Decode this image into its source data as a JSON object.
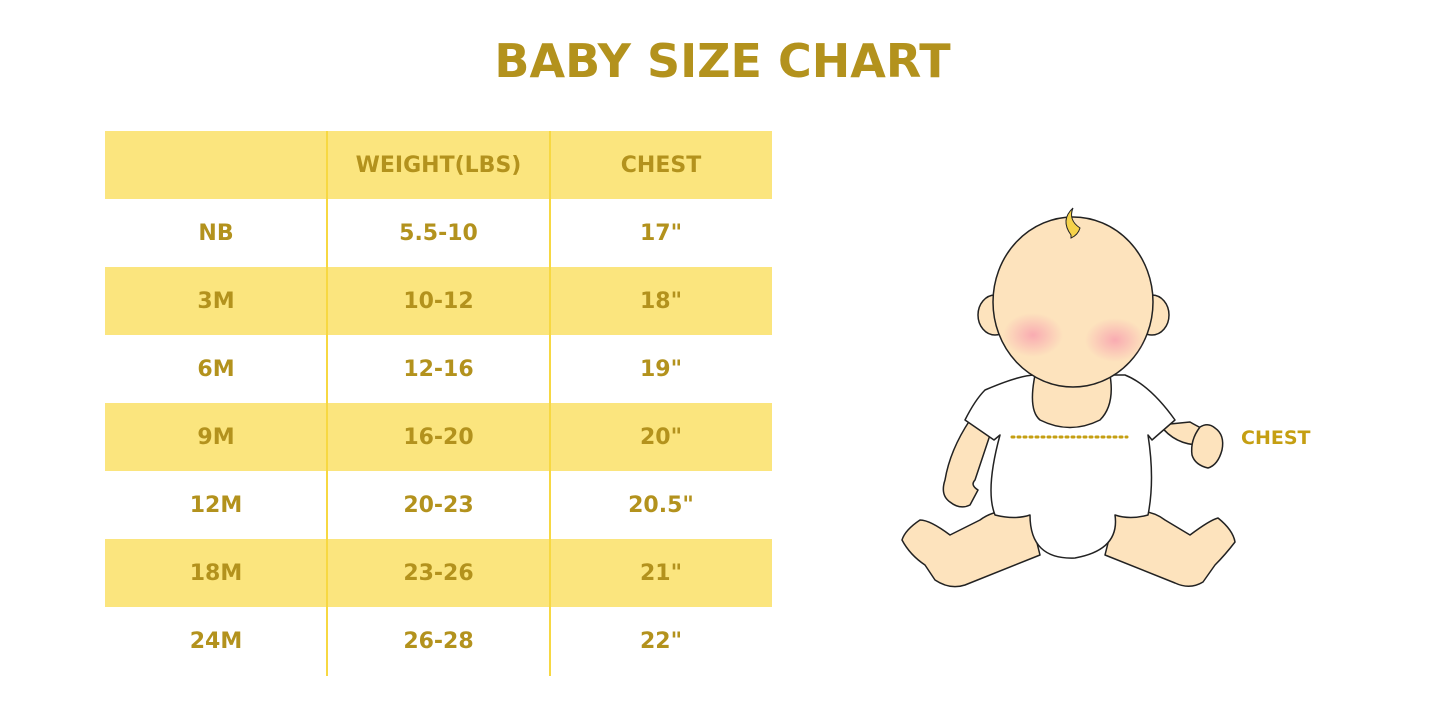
{
  "title": "BABY SIZE CHART",
  "table": {
    "headers": [
      "",
      "WEIGHT(LBS)",
      "CHEST"
    ],
    "rows": [
      [
        "NB",
        "5.5-10",
        "17\""
      ],
      [
        "3M",
        "10-12",
        "18\""
      ],
      [
        "6M",
        "12-16",
        "19\""
      ],
      [
        "9M",
        "16-20",
        "20\""
      ],
      [
        "12M",
        "20-23",
        "20.5\""
      ],
      [
        "18M",
        "23-26",
        "21\""
      ],
      [
        "24M",
        "26-28",
        "22\""
      ]
    ]
  },
  "illustration": {
    "chest_label": "CHEST"
  },
  "colors": {
    "text": "#b3921d",
    "band": "#fbe57e",
    "divider": "#f7d842",
    "skin": "#fde3bd"
  }
}
